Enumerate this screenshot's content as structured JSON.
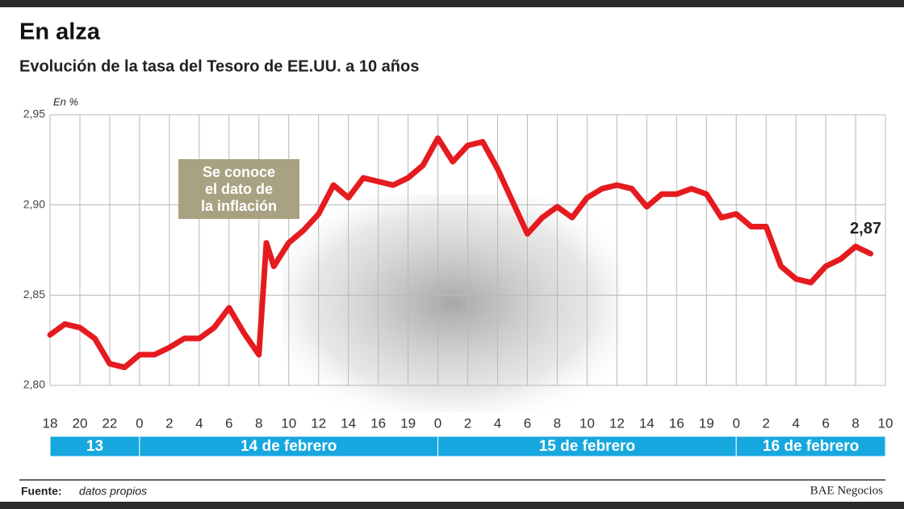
{
  "chart_data": {
    "type": "line",
    "title": "En alza",
    "subtitle": "Evolución de la tasa del Tesoro de EE.UU. a 10 años",
    "unit": "En %",
    "color": "#e51b1f",
    "x": [
      0,
      0.5,
      1,
      1.5,
      2,
      2.5,
      3,
      3.5,
      4,
      4.5,
      5,
      5.5,
      6,
      6.5,
      7,
      7.25,
      7.5,
      8,
      8.5,
      9,
      9.5,
      10,
      10.5,
      11,
      11.5,
      12,
      12.5,
      13,
      13.5,
      14,
      14.5,
      15,
      15.5,
      16,
      16.5,
      17,
      17.5,
      18,
      18.5,
      19,
      19.5,
      20,
      20.5,
      21,
      21.5,
      22,
      22.5,
      23,
      23.5,
      24,
      24.5,
      25,
      25.5,
      26,
      26.5,
      27,
      27.5
    ],
    "values": [
      2.828,
      2.834,
      2.832,
      2.826,
      2.812,
      2.81,
      2.817,
      2.817,
      2.821,
      2.826,
      2.826,
      2.832,
      2.843,
      2.829,
      2.817,
      2.879,
      2.866,
      2.879,
      2.886,
      2.895,
      2.911,
      2.904,
      2.915,
      2.913,
      2.911,
      2.915,
      2.922,
      2.937,
      2.924,
      2.933,
      2.935,
      2.92,
      2.902,
      2.884,
      2.893,
      2.899,
      2.893,
      2.904,
      2.909,
      2.911,
      2.909,
      2.899,
      2.906,
      2.906,
      2.909,
      2.906,
      2.893,
      2.895,
      2.888,
      2.888,
      2.866,
      2.859,
      2.857,
      2.866,
      2.87,
      2.877,
      2.873
    ],
    "end_label": "2,87",
    "xlim": [
      0,
      28
    ],
    "xticks": [
      {
        "value": 0,
        "label": "18"
      },
      {
        "value": 1,
        "label": "20"
      },
      {
        "value": 2,
        "label": "22"
      },
      {
        "value": 3,
        "label": "0"
      },
      {
        "value": 4,
        "label": "2"
      },
      {
        "value": 5,
        "label": "4"
      },
      {
        "value": 6,
        "label": "6"
      },
      {
        "value": 7,
        "label": "8"
      },
      {
        "value": 8,
        "label": "10"
      },
      {
        "value": 9,
        "label": "12"
      },
      {
        "value": 10,
        "label": "14"
      },
      {
        "value": 11,
        "label": "16"
      },
      {
        "value": 12,
        "label": "19"
      },
      {
        "value": 13,
        "label": "0"
      },
      {
        "value": 14,
        "label": "2"
      },
      {
        "value": 15,
        "label": "4"
      },
      {
        "value": 16,
        "label": "6"
      },
      {
        "value": 17,
        "label": "8"
      },
      {
        "value": 18,
        "label": "10"
      },
      {
        "value": 19,
        "label": "12"
      },
      {
        "value": 20,
        "label": "14"
      },
      {
        "value": 21,
        "label": "16"
      },
      {
        "value": 22,
        "label": "19"
      },
      {
        "value": 23,
        "label": "0"
      },
      {
        "value": 24,
        "label": "2"
      },
      {
        "value": 25,
        "label": "4"
      },
      {
        "value": 26,
        "label": "6"
      },
      {
        "value": 27,
        "label": "8"
      },
      {
        "value": 28,
        "label": "10"
      }
    ],
    "ylim": [
      2.8,
      2.95
    ],
    "yticks": [
      {
        "value": 2.8,
        "label": "2,80"
      },
      {
        "value": 2.85,
        "label": "2,85"
      },
      {
        "value": 2.9,
        "label": "2,90"
      },
      {
        "value": 2.95,
        "label": "2,95"
      }
    ],
    "grid": true,
    "day_bands": [
      {
        "label": "13",
        "from": 0,
        "to": 3
      },
      {
        "label": "14 de febrero",
        "from": 3,
        "to": 13
      },
      {
        "label": "15 de febrero",
        "from": 13,
        "to": 23
      },
      {
        "label": "16 de febrero",
        "from": 23,
        "to": 28
      }
    ],
    "annotation": [
      "Se conoce",
      "el dato de",
      "la inflación"
    ],
    "source_label": "Fuente:",
    "source": "datos propios",
    "credit": "BAE Negocios"
  }
}
